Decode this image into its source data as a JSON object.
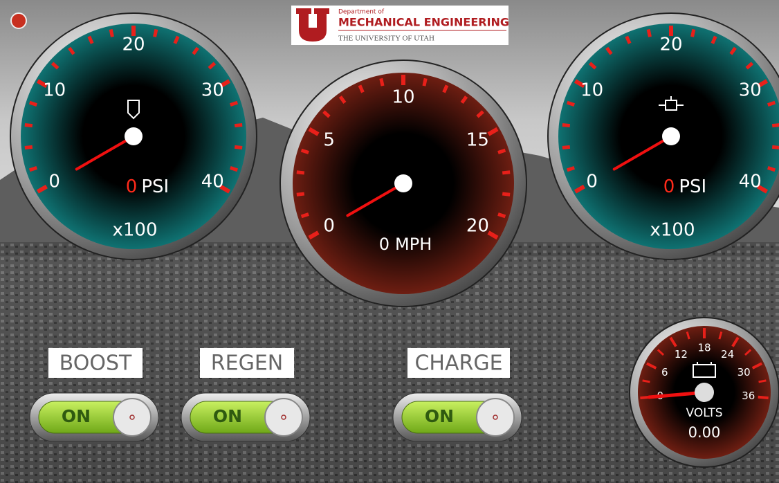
{
  "header": {
    "department": "Department of",
    "name": "MECHANICAL ENGINEERING",
    "university": "THE UNIVERSITY OF UTAH"
  },
  "gauges": [
    {
      "range": [
        0,
        40
      ],
      "ticks": [
        0,
        10,
        20,
        30,
        40
      ],
      "value": 0,
      "unit": "PSI",
      "multiplier": "x100"
    },
    {
      "range": [
        0,
        20
      ],
      "ticks": [
        0,
        5,
        10,
        15,
        20
      ],
      "value": 0,
      "unit": "MPH"
    },
    {
      "range": [
        0,
        40
      ],
      "ticks": [
        0,
        10,
        20,
        30,
        40
      ],
      "value": 0,
      "unit": "PSI",
      "multiplier": "x100"
    },
    {
      "range": [
        0,
        36
      ],
      "ticks": [
        0,
        6,
        12,
        18,
        24,
        30,
        36
      ],
      "value": 0,
      "value_label": "0.00",
      "unit": "VOLTS"
    }
  ],
  "switches": [
    {
      "label": "BOOST",
      "state": "ON"
    },
    {
      "label": "REGEN",
      "state": "ON"
    },
    {
      "label": "CHARGE",
      "state": "ON"
    }
  ]
}
